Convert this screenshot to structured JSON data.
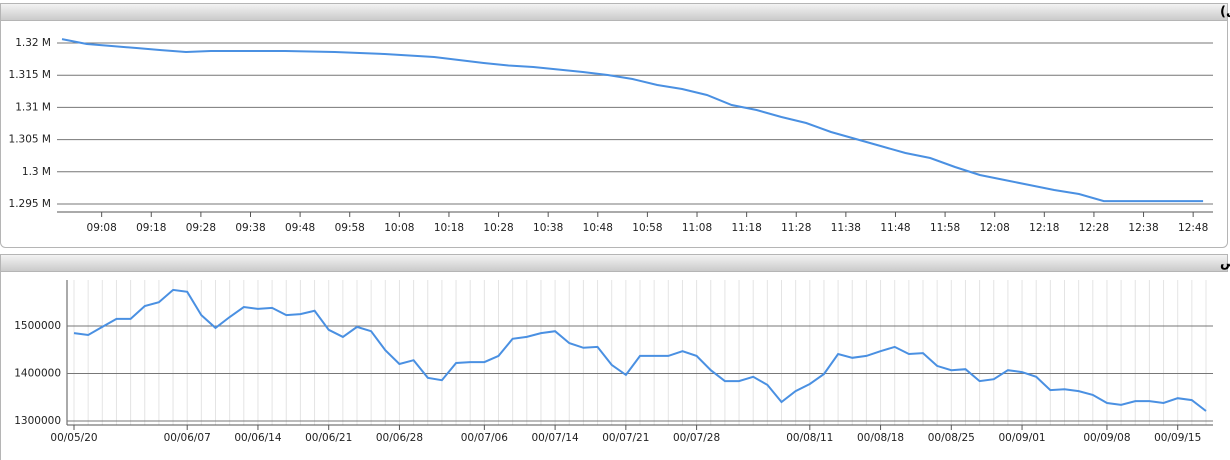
{
  "chart_data": [
    {
      "type": "line",
      "title": "شاخص کل (آخرین روز معاملاتی)",
      "x": [
        "09:00",
        "09:05",
        "09:10",
        "09:15",
        "09:20",
        "09:25",
        "09:30",
        "09:35",
        "09:40",
        "09:45",
        "09:50",
        "09:55",
        "10:00",
        "10:05",
        "10:10",
        "10:15",
        "10:20",
        "10:25",
        "10:30",
        "10:35",
        "10:40",
        "10:45",
        "10:50",
        "10:55",
        "11:00",
        "11:05",
        "11:10",
        "11:15",
        "11:20",
        "11:25",
        "11:30",
        "11:35",
        "11:40",
        "11:45",
        "11:50",
        "11:55",
        "12:00",
        "12:05",
        "12:10",
        "12:15",
        "12:20",
        "12:25",
        "12:30",
        "12:35",
        "12:40",
        "12:45",
        "12:50"
      ],
      "values": [
        1320600,
        1319850,
        1319530,
        1319220,
        1318900,
        1318600,
        1318760,
        1318760,
        1318760,
        1318760,
        1318680,
        1318600,
        1318450,
        1318290,
        1318060,
        1317830,
        1317360,
        1316890,
        1316510,
        1316270,
        1315880,
        1315500,
        1315030,
        1314410,
        1313480,
        1312860,
        1311930,
        1310370,
        1309600,
        1308510,
        1307580,
        1306180,
        1305090,
        1304010,
        1302920,
        1302140,
        1300740,
        1299500,
        1298730,
        1297950,
        1297170,
        1296550,
        1295460,
        1295460,
        1295460,
        1295460,
        1295460
      ],
      "color": "#4a90e2",
      "xlim": [
        "08:59",
        "12:52"
      ],
      "xticks": [
        "09:08",
        "09:18",
        "09:28",
        "09:38",
        "09:48",
        "09:58",
        "10:08",
        "10:18",
        "10:28",
        "10:38",
        "10:48",
        "10:58",
        "11:08",
        "11:18",
        "11:28",
        "11:38",
        "11:48",
        "11:58",
        "12:08",
        "12:18",
        "12:28",
        "12:38",
        "12:48"
      ],
      "ylim": [
        1293760,
        1323260
      ],
      "yticks": [
        {
          "value": 1295000,
          "label": "1.295 M"
        },
        {
          "value": 1300000,
          "label": "1.3 M"
        },
        {
          "value": 1305000,
          "label": "1.305 M"
        },
        {
          "value": 1310000,
          "label": "1.31 M"
        },
        {
          "value": 1315000,
          "label": "1.315 M"
        },
        {
          "value": 1320000,
          "label": "1.32 M"
        }
      ],
      "grid": true
    },
    {
      "type": "line",
      "title": "نمودار شاخص",
      "categories": [
        "00/05/20",
        null,
        null,
        null,
        null,
        null,
        null,
        null,
        "00/06/07",
        null,
        null,
        null,
        null,
        "00/06/14",
        null,
        null,
        null,
        null,
        "00/06/21",
        null,
        null,
        null,
        null,
        "00/06/28",
        null,
        null,
        null,
        null,
        null,
        "00/07/06",
        null,
        null,
        null,
        null,
        "00/07/14",
        null,
        null,
        null,
        null,
        "00/07/21",
        null,
        null,
        null,
        null,
        "00/07/28",
        null,
        null,
        null,
        null,
        null,
        null,
        null,
        "00/08/11",
        null,
        null,
        null,
        null,
        "00/08/18",
        null,
        null,
        null,
        null,
        "00/08/25",
        null,
        null,
        null,
        null,
        "00/09/01",
        null,
        null,
        null,
        null,
        null,
        "00/09/08",
        null,
        null,
        null,
        null,
        "00/09/15",
        null,
        null
      ],
      "values": [
        1485000,
        1481000,
        1498000,
        1515000,
        1515000,
        1542000,
        1550000,
        1576000,
        1572000,
        1523000,
        1496000,
        1519000,
        1540000,
        1536000,
        1538000,
        1523000,
        1525000,
        1532000,
        1492000,
        1477000,
        1498000,
        1489000,
        1449000,
        1420000,
        1428000,
        1391000,
        1386000,
        1422000,
        1424000,
        1424000,
        1437000,
        1473000,
        1477000,
        1485000,
        1489000,
        1464000,
        1454000,
        1456000,
        1418000,
        1397000,
        1437000,
        1437000,
        1437000,
        1447000,
        1437000,
        1407000,
        1384000,
        1384000,
        1393000,
        1376000,
        1340000,
        1363000,
        1378000,
        1399000,
        1441000,
        1433000,
        1437000,
        1447000,
        1456000,
        1441000,
        1443000,
        1416000,
        1407000,
        1409000,
        1384000,
        1388000,
        1407000,
        1403000,
        1393000,
        1365000,
        1367000,
        1363000,
        1355000,
        1338000,
        1334000,
        1342000,
        1342000,
        1338000,
        1348000,
        1344000,
        1321000
      ],
      "color": "#4a90e2",
      "ylim": [
        1291600,
        1596800
      ],
      "yticks": [
        1300000,
        1400000,
        1500000
      ],
      "grid": true
    }
  ]
}
